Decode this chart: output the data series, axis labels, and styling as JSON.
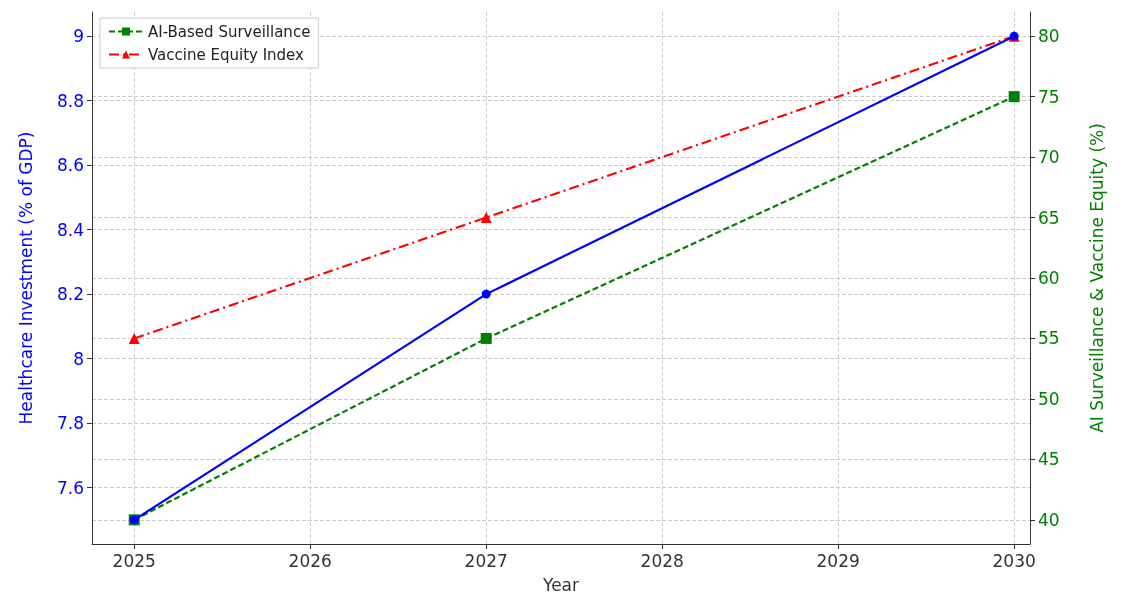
{
  "chart_data": {
    "type": "line",
    "xlabel": "Year",
    "ylabel": "Healthcare Investment (% of GDP)",
    "y2label": "AI Surveillance & Vaccine Equity (%)",
    "x": [
      2025,
      2027,
      2030
    ],
    "series": [
      {
        "color": "#0000ff",
        "values": [
          7.5,
          8.2,
          9.0
        ],
        "marker": "circle",
        "line_style": "solid"
      },
      {
        "name": "AI-Based Surveillance",
        "color": "#008000",
        "values": [
          40,
          55,
          75
        ],
        "axis": "y2",
        "marker": "square",
        "line_style": "dashed"
      },
      {
        "name": "Vaccine Equity Index",
        "color": "#ff0000",
        "values": [
          55,
          65,
          80
        ],
        "axis": "y2",
        "marker": "triangle",
        "line_style": "dashdot"
      }
    ],
    "xlim": [
      2024.76,
      2030.09
    ],
    "xticks": [
      2025,
      2026,
      2027,
      2028,
      2029,
      2030
    ],
    "ylim": [
      7.425,
      9.075
    ],
    "yticks": [
      7.6,
      7.8,
      8.0,
      8.2,
      8.4,
      8.6,
      8.8,
      9.0
    ],
    "y2lim": [
      38,
      82
    ],
    "y2ticks": [
      40,
      45,
      50,
      55,
      60,
      65,
      70,
      75,
      80
    ],
    "grid": true,
    "legend": "top left"
  }
}
